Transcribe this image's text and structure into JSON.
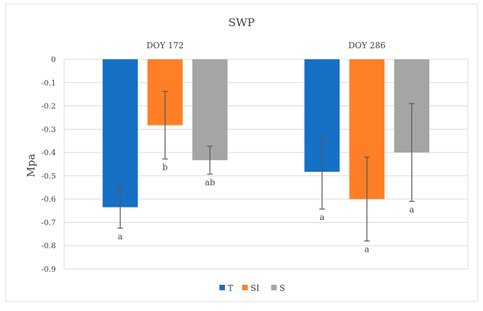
{
  "chart_data": {
    "type": "bar",
    "title": "SWP",
    "ylabel": "Mpa",
    "xlabel": "",
    "categories": [
      "DOY 172",
      "DOY 286"
    ],
    "ylim": [
      -0.9,
      0
    ],
    "yticks": [
      0,
      -0.1,
      -0.2,
      -0.3,
      -0.4,
      -0.5,
      -0.6,
      -0.7,
      -0.8,
      -0.9
    ],
    "grid": true,
    "legend_position": "bottom",
    "series": [
      {
        "name": "T",
        "color": "#1570C6",
        "values": [
          -0.635,
          -0.483
        ],
        "error": [
          0.09,
          0.16
        ],
        "letters": [
          "a",
          "a"
        ]
      },
      {
        "name": "SI",
        "color": "#FF7F27",
        "values": [
          -0.283,
          -0.6
        ],
        "error": [
          0.145,
          0.18
        ],
        "letters": [
          "b",
          "a"
        ]
      },
      {
        "name": "S",
        "color": "#A5A5A5",
        "values": [
          -0.433,
          -0.4
        ],
        "error": [
          0.06,
          0.21
        ],
        "letters": [
          "ab",
          "a"
        ]
      }
    ]
  }
}
